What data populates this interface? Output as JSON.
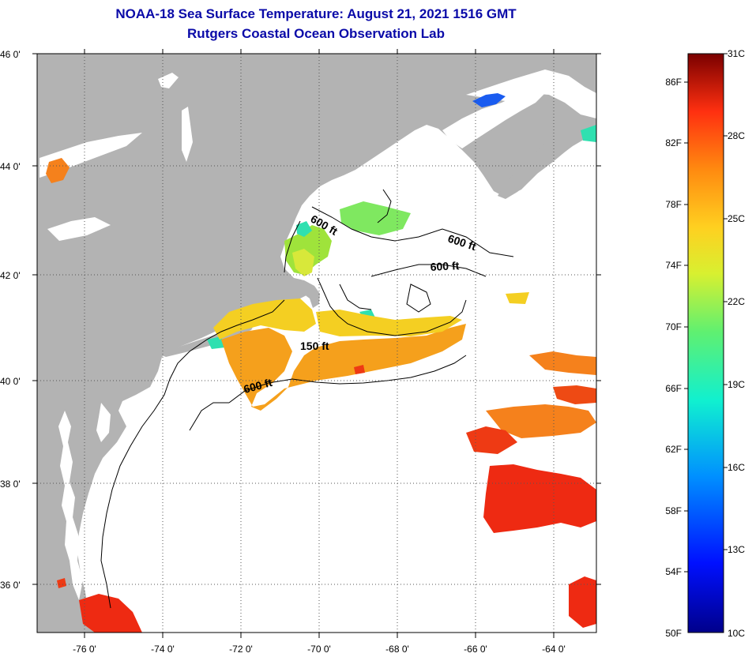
{
  "header": {
    "title": "NOAA-18 Sea Surface Temperature:  August 21, 2021 1516 GMT",
    "subtitle": "Rutgers Coastal Ocean Observation Lab"
  },
  "axes": {
    "lat_labels": [
      "46 0'",
      "44 0'",
      "42 0'",
      "40 0'",
      "38 0'",
      "36 0'"
    ],
    "lon_labels": [
      "-76 0'",
      "-74 0'",
      "-72 0'",
      "-70 0'",
      "-68 0'",
      "-66 0'",
      "-64 0'"
    ]
  },
  "contours": {
    "labels": [
      "600 ft",
      "600 ft",
      "600 ft",
      "150 ft",
      "600 ft"
    ]
  },
  "colorbar": {
    "fahrenheit": [
      "86F",
      "82F",
      "78F",
      "74F",
      "70F",
      "66F",
      "62F",
      "58F",
      "54F",
      "50F"
    ],
    "celsius": [
      "31C",
      "28C",
      "25C",
      "22C",
      "19C",
      "16C",
      "13C",
      "10C"
    ]
  },
  "colors": {
    "land": "#b3b3b3",
    "title": "#0a0aa8",
    "warm": "#ee2a12",
    "orange": "#f5811c",
    "yellow": "#f4cf22",
    "green": "#9fe33b",
    "cyan": "#2fe0b0",
    "blue": "#1a5cf0"
  }
}
